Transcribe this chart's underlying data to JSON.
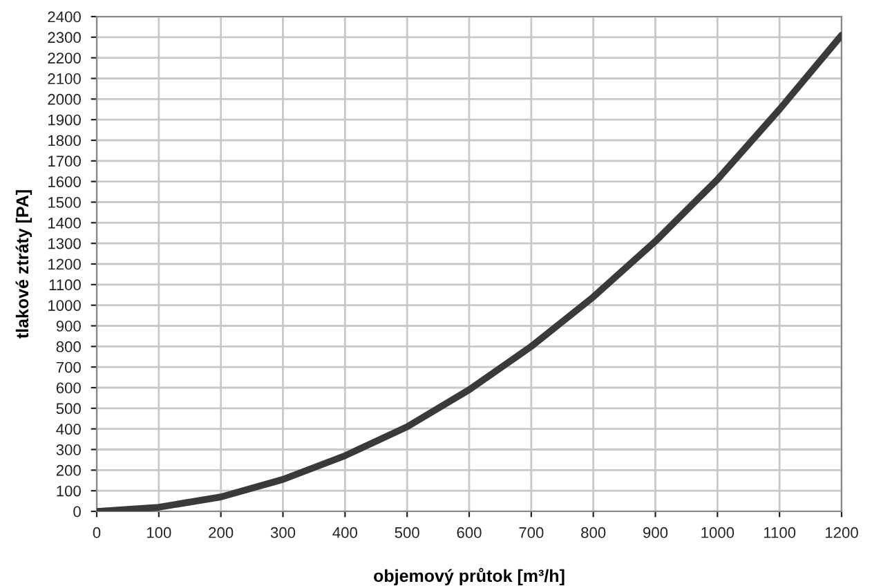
{
  "chart_data": {
    "type": "line",
    "xlabel": "objemový průtok [m³/h]",
    "ylabel": "tlakové ztráty [PA]",
    "x": [
      0,
      100,
      200,
      300,
      400,
      500,
      600,
      700,
      800,
      900,
      1000,
      1100,
      1200
    ],
    "series": [
      {
        "color": "#3a3a3a",
        "values": [
          0,
          20,
          70,
          155,
          270,
          410,
          590,
          800,
          1040,
          1310,
          1610,
          1950,
          2310
        ]
      }
    ],
    "xlim": [
      0,
      1200
    ],
    "xticks": [
      0,
      100,
      200,
      300,
      400,
      500,
      600,
      700,
      800,
      900,
      1000,
      1100,
      1200
    ],
    "ylim": [
      0,
      2400
    ],
    "yticks": [
      0,
      100,
      200,
      300,
      400,
      500,
      600,
      700,
      800,
      900,
      1000,
      1100,
      1200,
      1300,
      1400,
      1500,
      1600,
      1700,
      1800,
      1900,
      2000,
      2100,
      2200,
      2300,
      2400
    ],
    "grid": true,
    "marker": "none",
    "line_style": "solid"
  }
}
